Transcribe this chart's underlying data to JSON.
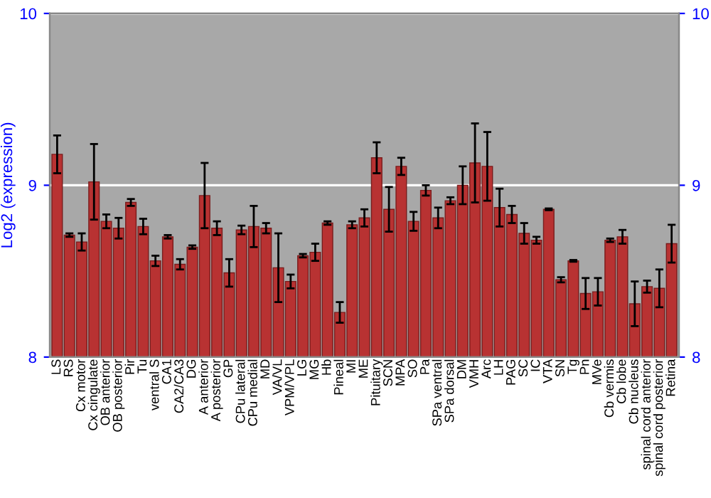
{
  "chart_data": {
    "type": "bar",
    "ylabel": "Log2 (expression)",
    "categories": [
      "LS",
      "RS",
      "Cx motor",
      "Cx cingulate",
      "OB anterior",
      "OB posterior",
      "Pir",
      "Tu",
      "ventral S",
      "CA1",
      "CA2/CA3",
      "DG",
      "A anterior",
      "A posterior",
      "GP",
      "CPu lateral",
      "CPu medial",
      "MD",
      "VA/VL",
      "VPM/VPL",
      "LG",
      "MG",
      "Hb",
      "Pineal",
      "MI",
      "ME",
      "Pituitary",
      "SCN",
      "MPA",
      "SO",
      "Pa",
      "SPa ventral",
      "SPa dorsal",
      "DM",
      "VMH",
      "Arc",
      "LH",
      "PAG",
      "SC",
      "IC",
      "VTA",
      "SN",
      "Tg",
      "Pn",
      "MVe",
      "Cb vermis",
      "Cb lobe",
      "Cb nucleus",
      "spinal cord anterior",
      "spinal cord posterior",
      "Retina"
    ],
    "values": [
      9.18,
      8.71,
      8.67,
      9.02,
      8.79,
      8.75,
      8.9,
      8.76,
      8.56,
      8.7,
      8.54,
      8.64,
      8.94,
      8.75,
      8.49,
      8.74,
      8.76,
      8.75,
      8.52,
      8.44,
      8.59,
      8.61,
      8.78,
      8.26,
      8.77,
      8.81,
      9.16,
      8.86,
      9.11,
      8.79,
      8.97,
      8.81,
      8.91,
      9.0,
      9.13,
      9.11,
      8.87,
      8.83,
      8.72,
      8.68,
      8.86,
      8.45,
      8.56,
      8.37,
      8.38,
      8.68,
      8.7,
      8.31,
      8.41,
      8.4,
      8.66
    ],
    "errors": [
      0.11,
      0.01,
      0.05,
      0.22,
      0.04,
      0.06,
      0.02,
      0.045,
      0.03,
      0.01,
      0.03,
      0.01,
      0.19,
      0.04,
      0.08,
      0.025,
      0.12,
      0.03,
      0.2,
      0.04,
      0.01,
      0.05,
      0.01,
      0.06,
      0.02,
      0.05,
      0.09,
      0.13,
      0.05,
      0.055,
      0.03,
      0.06,
      0.02,
      0.11,
      0.23,
      0.2,
      0.11,
      0.05,
      0.06,
      0.02,
      0.005,
      0.015,
      0.005,
      0.09,
      0.08,
      0.01,
      0.04,
      0.13,
      0.035,
      0.11,
      0.11
    ],
    "color": "#b83232",
    "ylim": [
      8,
      10
    ],
    "yticks": [
      8,
      9,
      10
    ],
    "y2lim": [
      8,
      10
    ],
    "y2ticks": [
      8,
      9,
      10
    ],
    "grid": "y"
  }
}
